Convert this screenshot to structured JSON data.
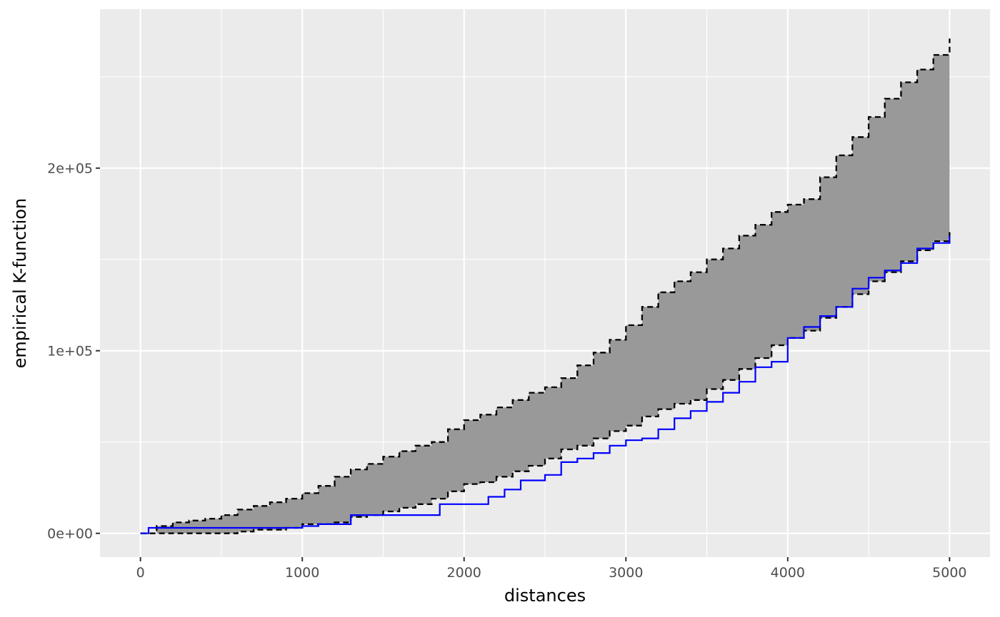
{
  "chart_data": {
    "type": "line",
    "xlabel": "distances",
    "ylabel": "empirical K-function",
    "xlim": [
      -250,
      5250
    ],
    "ylim": [
      -13000,
      287000
    ],
    "x_ticks": [
      0,
      1000,
      2000,
      3000,
      4000,
      5000
    ],
    "x_tick_labels": [
      "0",
      "1000",
      "2000",
      "3000",
      "4000",
      "5000"
    ],
    "y_ticks": [
      0,
      100000,
      200000
    ],
    "y_tick_labels": [
      "0e+00",
      "1e+05",
      "2e+05"
    ],
    "grid": true,
    "envelope": {
      "x": [
        0,
        100,
        200,
        300,
        400,
        500,
        600,
        700,
        800,
        900,
        1000,
        1100,
        1200,
        1300,
        1400,
        1500,
        1600,
        1700,
        1800,
        1900,
        2000,
        2100,
        2200,
        2300,
        2400,
        2500,
        2600,
        2700,
        2800,
        2900,
        3000,
        3100,
        3200,
        3300,
        3400,
        3500,
        3600,
        3700,
        3800,
        3900,
        4000,
        4100,
        4200,
        4300,
        4400,
        4500,
        4600,
        4700,
        4800,
        4900,
        5000
      ],
      "upper": [
        0,
        4000,
        6000,
        7000,
        8000,
        10000,
        13000,
        15000,
        17000,
        19000,
        22000,
        26000,
        31000,
        35000,
        38000,
        42000,
        45000,
        48000,
        50000,
        57000,
        62000,
        65000,
        69000,
        73000,
        77000,
        80000,
        85000,
        92000,
        99000,
        106000,
        114000,
        124000,
        132000,
        138000,
        143000,
        150000,
        156000,
        163000,
        169000,
        176000,
        180000,
        183000,
        195000,
        207000,
        217000,
        228000,
        238000,
        247000,
        254000,
        262000,
        271000
      ],
      "lower": [
        0,
        0,
        0,
        0,
        0,
        0,
        1000,
        2000,
        2000,
        3000,
        5000,
        5000,
        6000,
        9000,
        10000,
        12000,
        14000,
        16000,
        19000,
        23000,
        27000,
        28000,
        31000,
        34000,
        37000,
        41000,
        46000,
        48000,
        52000,
        56000,
        59000,
        64000,
        68000,
        71000,
        73000,
        79000,
        84000,
        90000,
        96000,
        103000,
        107000,
        111000,
        118000,
        124000,
        131000,
        138000,
        143000,
        149000,
        155000,
        160000,
        165000
      ],
      "fill_color": "#999999",
      "line_color": "#000000"
    },
    "series": [
      {
        "x": [
          0,
          50,
          1000,
          1100,
          1300,
          1700,
          1850,
          2050,
          2150,
          2250,
          2350,
          2500,
          2600,
          2700,
          2800,
          2900,
          3000,
          3100,
          3200,
          3300,
          3400,
          3500,
          3600,
          3700,
          3800,
          3900,
          4000,
          4100,
          4200,
          4300,
          4400,
          4500,
          4600,
          4700,
          4800,
          4900,
          5000
        ],
        "values": [
          0,
          3000,
          4000,
          5000,
          10000,
          10000,
          16000,
          16000,
          20000,
          24000,
          29000,
          32000,
          39000,
          41000,
          44000,
          48000,
          51000,
          52000,
          57000,
          63000,
          67000,
          72000,
          77000,
          83000,
          91000,
          94000,
          107000,
          113000,
          119000,
          124000,
          134000,
          140000,
          144000,
          148000,
          156000,
          159000,
          163000
        ],
        "color": "#0000ff"
      }
    ]
  }
}
